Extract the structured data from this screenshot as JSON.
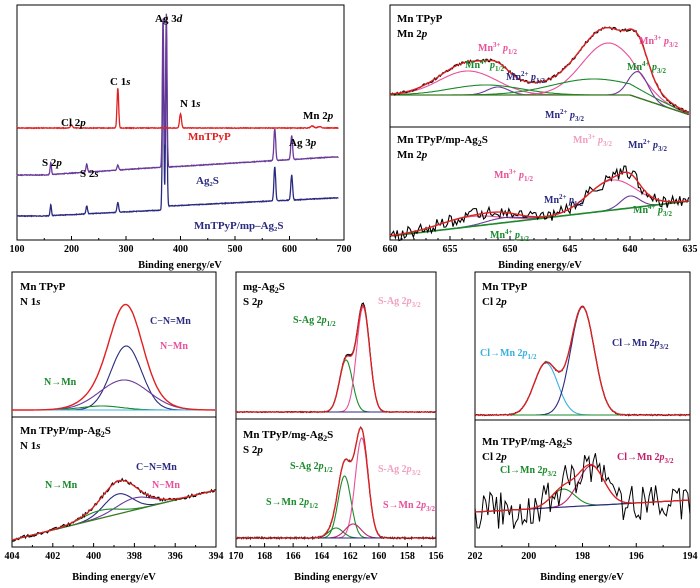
{
  "colors": {
    "red": "#e02020",
    "navy": "#2a2a80",
    "green": "#1a8a2a",
    "pink": "#e8509a",
    "lightblue": "#3ab0e0",
    "purple": "#6a3a9a",
    "black": "#000000",
    "olive": "#3a7a20"
  },
  "chart_data": [
    {
      "id": "survey",
      "type": "line",
      "xlabel": "Binding energy/eV",
      "ylabel": "",
      "xlim": [
        100,
        700
      ],
      "x_ticks": [
        "100",
        "200",
        "300",
        "400",
        "500",
        "600",
        "700"
      ],
      "series": [
        {
          "name": "MnTPyP"
        },
        {
          "name": "Ag₂S"
        },
        {
          "name": "MnTPyP/mp–Ag₂S"
        }
      ],
      "annotations": [
        "Ag 3d",
        "C 1s",
        "N 1s",
        "Cl 2p",
        "Mn 2p",
        "S 2p",
        "S 2s",
        "Ag 3p"
      ]
    },
    {
      "id": "mn2p",
      "type": "line",
      "xlabel": "Binding energy/eV",
      "xlim": [
        660,
        635
      ],
      "x_ticks": [
        "660",
        "655",
        "650",
        "645",
        "640",
        "635"
      ],
      "panels": [
        {
          "title": "Mn TPyP",
          "subtitle": "Mn 2p",
          "labels": [
            "Mn³⁺ p1/2",
            "Mn⁴⁺ p1/2",
            "Mn²⁺ p1/2",
            "Mn³⁺ p3/2",
            "Mn⁴⁺ p3/2",
            "Mn²⁺ p3/2"
          ]
        },
        {
          "title": "Mn TPyP/mp-Ag₂S",
          "subtitle": "Mn 2p",
          "labels": [
            "Mn³⁺ p3/2",
            "Mn²⁺ p3/2",
            "Mn³⁺ p1/2",
            "Mn²⁺ p1/2",
            "Mn⁴⁺ p3/2",
            "Mn⁴⁺ p1/2"
          ]
        }
      ]
    },
    {
      "id": "n1s",
      "type": "line",
      "xlabel": "Binding energy/eV",
      "xlim": [
        404,
        394
      ],
      "x_ticks": [
        "404",
        "402",
        "400",
        "398",
        "396",
        "394"
      ],
      "panels": [
        {
          "title": "Mn TPyP",
          "subtitle": "N 1s",
          "labels": [
            "C−N=Mn",
            "N→Mn",
            "N−Mn"
          ]
        },
        {
          "title": "Mn TPyP/mp-Ag₂S",
          "subtitle": "N 1s",
          "labels": [
            "C−N=Mn",
            "N→Mn",
            "N−Mn"
          ]
        }
      ]
    },
    {
      "id": "s2p",
      "type": "line",
      "xlabel": "Binding energy/eV",
      "xlim": [
        170,
        156
      ],
      "x_ticks": [
        "170",
        "168",
        "166",
        "164",
        "162",
        "160",
        "158",
        "156"
      ],
      "panels": [
        {
          "title": "mg-Ag₂S",
          "subtitle": "S 2p",
          "labels": [
            "S-Ag 2p1/2",
            "S-Ag 2p3/2"
          ]
        },
        {
          "title": "Mn TPyP/mg-Ag₂S",
          "subtitle": "S 2p",
          "labels": [
            "S-Ag 2p1/2",
            "S-Ag 2p3/2",
            "S→Mn 2p1/2",
            "S→Mn 2p3/2"
          ]
        }
      ]
    },
    {
      "id": "cl2p",
      "type": "line",
      "xlabel": "Binding energy/eV",
      "xlim": [
        202,
        192
      ],
      "x_ticks": [
        "202",
        "200",
        "198",
        "196",
        "194"
      ],
      "panels": [
        {
          "title": "Mn TPyP",
          "subtitle": "Cl 2p",
          "labels": [
            "Cl→Mn 2p1/2",
            "Cl→Mn 2p3/2"
          ]
        },
        {
          "title": "Mn TPyP/mg-Ag₂S",
          "subtitle": "Cl 2p",
          "labels": [
            "Cl→Mn 2p3/2",
            "Cl→Mn 2p3/2"
          ]
        }
      ]
    }
  ]
}
